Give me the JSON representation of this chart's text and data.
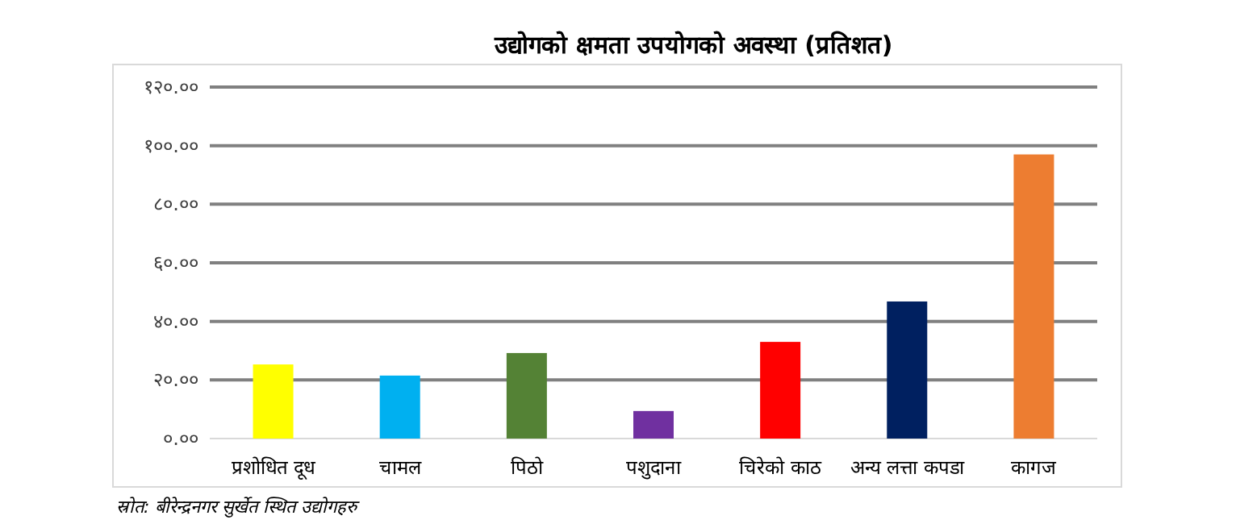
{
  "chart_data": {
    "type": "bar",
    "title": "उद्योगको क्षमता उपयोगको अवस्था (प्रतिशत)",
    "categories": [
      "प्रशोधित दूध",
      "चामल",
      "पिठो",
      "पशुदाना",
      "चिरेको काठ",
      "अन्य लत्ता कपडा",
      "कागज"
    ],
    "values": [
      25.3,
      21.5,
      29.2,
      9.4,
      33.0,
      46.8,
      97.0
    ],
    "colors": [
      "#ffff00",
      "#00b0f0",
      "#548235",
      "#7030a0",
      "#ff0000",
      "#002060",
      "#ed7d31"
    ],
    "ylim": [
      0,
      120
    ],
    "yticks": [
      {
        "value": 0,
        "label": "०.००"
      },
      {
        "value": 20,
        "label": "२०.००"
      },
      {
        "value": 40,
        "label": "४०.००"
      },
      {
        "value": 60,
        "label": "६०.००"
      },
      {
        "value": 80,
        "label": "८०.००"
      },
      {
        "value": 100,
        "label": "१००.००"
      },
      {
        "value": 120,
        "label": "१२०.००"
      }
    ],
    "grid": "y",
    "annotations": [
      "स्रोत: बीरेन्द्रनगर सुर्खेत स्थित उद्योगहरु"
    ]
  }
}
